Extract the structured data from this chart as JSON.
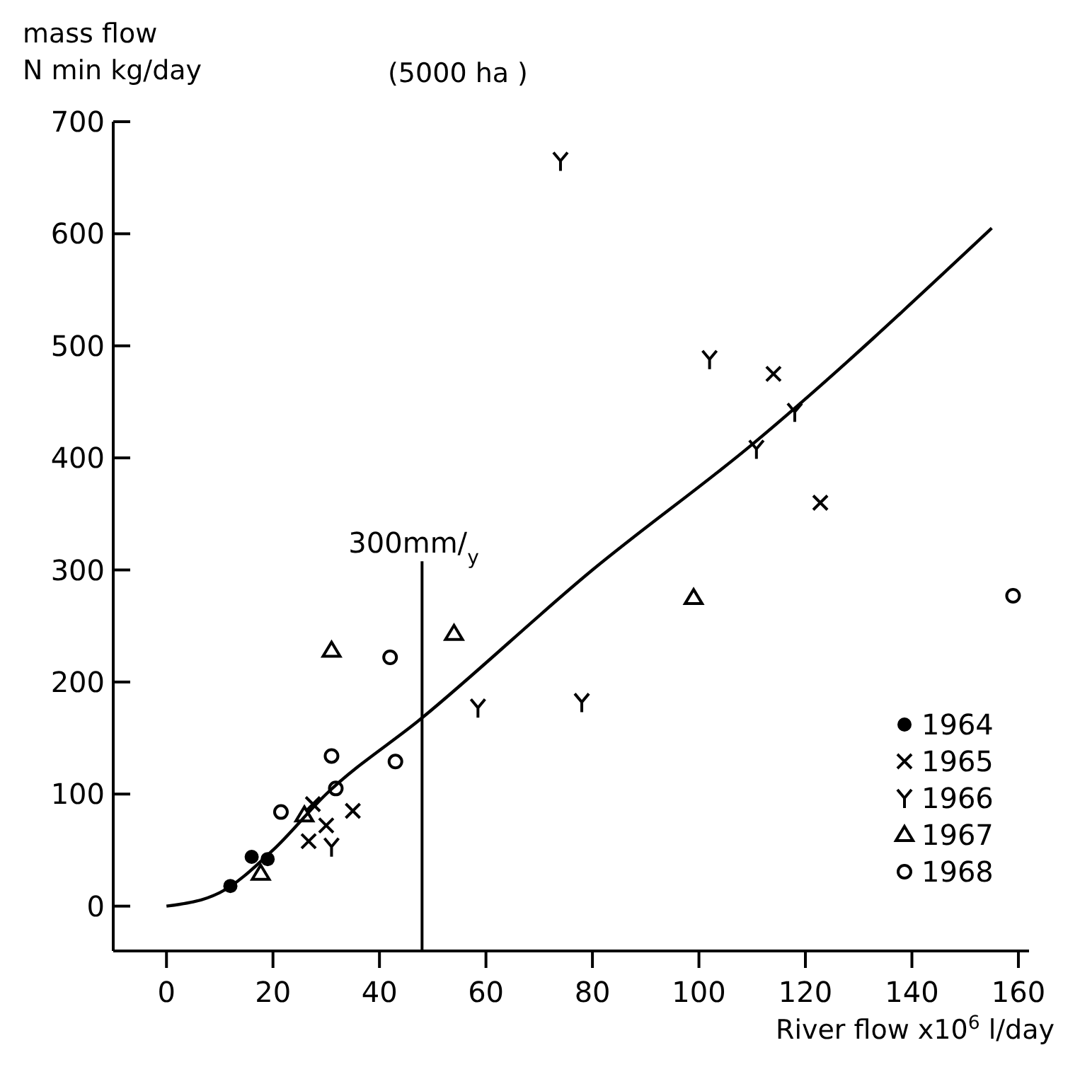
{
  "chart_data": {
    "type": "scatter",
    "subtitle": "(5000 ha )",
    "ylabel": "mass flow\nN min kg/day",
    "xlabel": "River flow x10$^{6}$ l/day",
    "xlim": [
      -10,
      162
    ],
    "ylim": [
      -40,
      700
    ],
    "xticks": [
      0,
      20,
      40,
      60,
      80,
      100,
      120,
      140,
      160
    ],
    "yticks": [
      0,
      100,
      200,
      300,
      400,
      500,
      600,
      700
    ],
    "grid": false,
    "legend": "bottom right",
    "series": [
      {
        "name": "1964",
        "color": "#000000",
        "marker": "circle",
        "x": [
          12,
          16,
          19
        ],
        "values": [
          18,
          44,
          42
        ]
      },
      {
        "name": "1965",
        "color": "#000000",
        "marker": "cross",
        "x": [
          27.5,
          30,
          26.7,
          35,
          114,
          122.8
        ],
        "values": [
          91,
          72,
          58,
          85,
          475,
          360
        ]
      },
      {
        "name": "1966",
        "color": "#000000",
        "x": [
          31,
          58.5,
          78,
          110.8,
          118,
          74,
          102
        ],
        "values": [
          53,
          177,
          182,
          408,
          441,
          665,
          488
        ]
      },
      {
        "name": "1967",
        "color": "#000000",
        "marker": "triangle",
        "x": [
          17.7,
          31,
          25.9,
          54,
          99
        ],
        "values": [
          29,
          228,
          81,
          243,
          275
        ]
      },
      {
        "name": "1968",
        "color": "#000000",
        "marker": "circle-open",
        "x": [
          42,
          31,
          31.8,
          21.5,
          43,
          159
        ],
        "values": [
          222,
          134,
          105,
          84,
          129,
          277
        ]
      },
      {
        "type": "line",
        "color": "#000000",
        "x": [
          0,
          10,
          20,
          30,
          48,
          80,
          110,
          155
        ],
        "values": [
          0,
          12,
          50,
          100,
          168,
          300,
          412,
          605
        ]
      }
    ],
    "ref_lines": [
      {
        "axis": "x",
        "value": 48,
        "label": "300mm/$_{y}$",
        "color": "#000000"
      }
    ]
  }
}
